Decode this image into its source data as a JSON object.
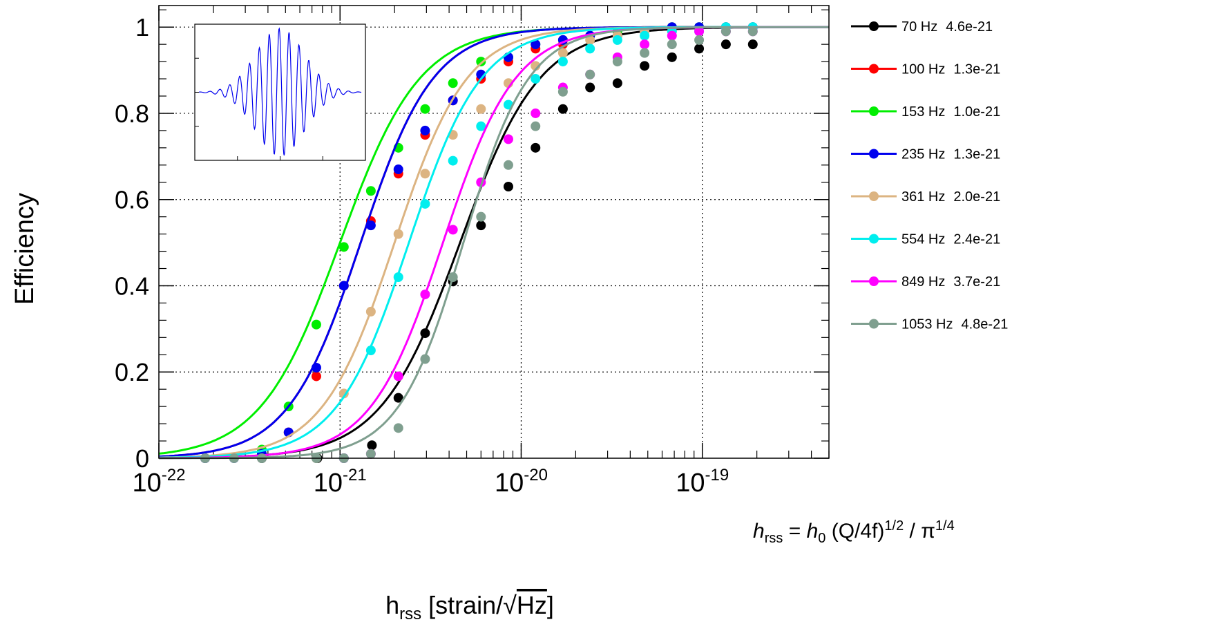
{
  "chart_data": {
    "type": "line",
    "title": "",
    "ylabel": "Efficiency",
    "xlabel": {
      "base": "h",
      "sub": "rss",
      "rest": " [strain/",
      "sqrt": "Hz",
      "close": "]"
    },
    "xscale": "log",
    "xlim": [
      1e-22,
      5e-19
    ],
    "ylim": [
      0,
      1.05
    ],
    "xticks": [
      {
        "value": 1e-22,
        "base": "10",
        "exp": "-22"
      },
      {
        "value": 1e-21,
        "base": "10",
        "exp": "-21"
      },
      {
        "value": 1e-20,
        "base": "10",
        "exp": "-20"
      },
      {
        "value": 1e-19,
        "base": "10",
        "exp": "-19"
      }
    ],
    "yticks": [
      {
        "value": 0,
        "label": "0"
      },
      {
        "value": 0.2,
        "label": "0.2"
      },
      {
        "value": 0.4,
        "label": "0.4"
      },
      {
        "value": 0.6,
        "label": "0.6"
      },
      {
        "value": 0.8,
        "label": "0.8"
      },
      {
        "value": 1,
        "label": "1"
      }
    ],
    "grid": true,
    "legend_position": "right",
    "inset": "sine-gaussian waveform",
    "series": [
      {
        "name": "70 Hz",
        "value_label": "4.6e-21",
        "color": "#000000",
        "x50": 4.6e-21,
        "width": 0.22,
        "points": [
          [
            1.8e-22,
            0
          ],
          [
            3.7e-22,
            0
          ],
          [
            7.5e-22,
            0
          ],
          [
            1.05e-21,
            0
          ],
          [
            1.5e-21,
            0.03
          ],
          [
            2.1e-21,
            0.14
          ],
          [
            2.95e-21,
            0.29
          ],
          [
            4.2e-21,
            0.41
          ],
          [
            6e-21,
            0.54
          ],
          [
            8.5e-21,
            0.63
          ],
          [
            1.2e-20,
            0.72
          ],
          [
            1.7e-20,
            0.81
          ],
          [
            2.4e-20,
            0.86
          ],
          [
            3.4e-20,
            0.87
          ],
          [
            4.8e-20,
            0.91
          ],
          [
            6.8e-20,
            0.93
          ],
          [
            9.6e-20,
            0.95
          ],
          [
            1.35e-19,
            0.96
          ],
          [
            1.9e-19,
            0.96
          ]
        ]
      },
      {
        "name": "100 Hz",
        "value_label": "1.3e-21",
        "color": "#ff0000",
        "x50": 1.3e-21,
        "width": 0.2,
        "points": [
          [
            3.7e-22,
            0.01
          ],
          [
            5.2e-22,
            0.06
          ],
          [
            7.4e-22,
            0.19
          ],
          [
            1.05e-21,
            0.4
          ],
          [
            1.48e-21,
            0.55
          ],
          [
            2.1e-21,
            0.66
          ],
          [
            2.95e-21,
            0.75
          ],
          [
            4.2e-21,
            0.83
          ],
          [
            6e-21,
            0.88
          ],
          [
            8.5e-21,
            0.92
          ],
          [
            1.2e-20,
            0.95
          ],
          [
            1.7e-20,
            0.96
          ],
          [
            2.4e-20,
            0.98
          ]
        ]
      },
      {
        "name": "153 Hz",
        "value_label": "1.0e-21",
        "color": "#00ee00",
        "x50": 1e-21,
        "width": 0.22,
        "points": [
          [
            3.7e-22,
            0.02
          ],
          [
            5.2e-22,
            0.12
          ],
          [
            7.4e-22,
            0.31
          ],
          [
            1.05e-21,
            0.49
          ],
          [
            1.48e-21,
            0.62
          ],
          [
            2.1e-21,
            0.72
          ],
          [
            2.95e-21,
            0.81
          ],
          [
            4.2e-21,
            0.87
          ],
          [
            6e-21,
            0.92
          ],
          [
            8.5e-21,
            0.93
          ],
          [
            1.2e-20,
            0.96
          ],
          [
            1.7e-20,
            0.97
          ],
          [
            2.4e-20,
            0.98
          ],
          [
            3.4e-20,
            0.99
          ],
          [
            4.8e-20,
            0.99
          ],
          [
            6.8e-20,
            1
          ],
          [
            9.6e-20,
            1
          ],
          [
            1.35e-19,
            1
          ],
          [
            1.9e-19,
            1
          ]
        ]
      },
      {
        "name": "235 Hz",
        "value_label": "1.3e-21",
        "color": "#0000ee",
        "x50": 1.3e-21,
        "width": 0.2,
        "points": [
          [
            1.8e-22,
            0
          ],
          [
            2.6e-22,
            0
          ],
          [
            3.7e-22,
            0.01
          ],
          [
            5.2e-22,
            0.06
          ],
          [
            7.4e-22,
            0.21
          ],
          [
            1.05e-21,
            0.4
          ],
          [
            1.48e-21,
            0.54
          ],
          [
            2.1e-21,
            0.67
          ],
          [
            2.95e-21,
            0.76
          ],
          [
            4.2e-21,
            0.83
          ],
          [
            6e-21,
            0.89
          ],
          [
            8.5e-21,
            0.93
          ],
          [
            1.2e-20,
            0.96
          ],
          [
            1.7e-20,
            0.97
          ],
          [
            2.4e-20,
            0.98
          ],
          [
            3.4e-20,
            0.98
          ],
          [
            4.8e-20,
            0.99
          ],
          [
            6.8e-20,
            1
          ],
          [
            9.6e-20,
            1
          ],
          [
            1.35e-19,
            1
          ],
          [
            1.9e-19,
            1
          ]
        ]
      },
      {
        "name": "361 Hz",
        "value_label": "2.0e-21",
        "color": "#dcb482",
        "x50": 2e-21,
        "width": 0.2,
        "points": [
          [
            7.4e-22,
            0
          ],
          [
            1.05e-21,
            0.15
          ],
          [
            1.48e-21,
            0.34
          ],
          [
            2.1e-21,
            0.52
          ],
          [
            2.95e-21,
            0.66
          ],
          [
            4.2e-21,
            0.75
          ],
          [
            6e-21,
            0.81
          ],
          [
            8.5e-21,
            0.87
          ],
          [
            1.2e-20,
            0.91
          ],
          [
            1.7e-20,
            0.94
          ],
          [
            2.4e-20,
            0.97
          ],
          [
            3.4e-20,
            0.98
          ],
          [
            4.8e-20,
            0.99
          ],
          [
            6.8e-20,
            0.99
          ]
        ]
      },
      {
        "name": "554 Hz",
        "value_label": "2.4e-21",
        "color": "#00eeee",
        "x50": 2.4e-21,
        "width": 0.2,
        "points": [
          [
            1.05e-21,
            0
          ],
          [
            1.48e-21,
            0.25
          ],
          [
            2.1e-21,
            0.42
          ],
          [
            2.95e-21,
            0.59
          ],
          [
            4.2e-21,
            0.69
          ],
          [
            6e-21,
            0.77
          ],
          [
            8.5e-21,
            0.82
          ],
          [
            1.2e-20,
            0.88
          ],
          [
            1.7e-20,
            0.92
          ],
          [
            2.4e-20,
            0.95
          ],
          [
            3.4e-20,
            0.97
          ],
          [
            4.8e-20,
            0.98
          ],
          [
            6.8e-20,
            0.99
          ],
          [
            9.6e-20,
            0.99
          ],
          [
            1.35e-19,
            1
          ],
          [
            1.9e-19,
            1
          ]
        ]
      },
      {
        "name": "849 Hz",
        "value_label": "3.7e-21",
        "color": "#ff00ff",
        "x50": 3.7e-21,
        "width": 0.2,
        "points": [
          [
            1.05e-21,
            0
          ],
          [
            1.48e-21,
            0.01
          ],
          [
            2.1e-21,
            0.19
          ],
          [
            2.95e-21,
            0.38
          ],
          [
            4.2e-21,
            0.53
          ],
          [
            6e-21,
            0.64
          ],
          [
            8.5e-21,
            0.74
          ],
          [
            1.2e-20,
            0.8
          ],
          [
            1.7e-20,
            0.86
          ],
          [
            2.4e-20,
            0.89
          ],
          [
            3.4e-20,
            0.93
          ],
          [
            4.8e-20,
            0.96
          ],
          [
            6.8e-20,
            0.98
          ],
          [
            9.6e-20,
            0.99
          ],
          [
            1.35e-19,
            0.99
          ],
          [
            1.9e-19,
            0.99
          ]
        ]
      },
      {
        "name": "1053 Hz",
        "value_label": "4.8e-21",
        "color": "#7f9f8f",
        "x50": 4.8e-21,
        "width": 0.18,
        "points": [
          [
            1.8e-22,
            0
          ],
          [
            2.6e-22,
            0
          ],
          [
            3.7e-22,
            0
          ],
          [
            7.4e-22,
            0
          ],
          [
            1.05e-21,
            0
          ],
          [
            1.48e-21,
            0.01
          ],
          [
            2.1e-21,
            0.07
          ],
          [
            2.95e-21,
            0.23
          ],
          [
            4.2e-21,
            0.42
          ],
          [
            6e-21,
            0.56
          ],
          [
            8.5e-21,
            0.68
          ],
          [
            1.2e-20,
            0.77
          ],
          [
            1.7e-20,
            0.85
          ],
          [
            2.4e-20,
            0.89
          ],
          [
            3.4e-20,
            0.92
          ],
          [
            4.8e-20,
            0.94
          ],
          [
            6.8e-20,
            0.96
          ],
          [
            9.6e-20,
            0.97
          ],
          [
            1.35e-19,
            0.99
          ],
          [
            1.9e-19,
            0.99
          ]
        ]
      }
    ]
  },
  "formula": {
    "h": "h",
    "h_sub": "rss",
    "eq": " = ",
    "h0": "h",
    "h0_sub": "0",
    "mid": " (Q/4f)",
    "sup1": "1/2",
    "slash": " / π",
    "sup2": "1/4"
  }
}
